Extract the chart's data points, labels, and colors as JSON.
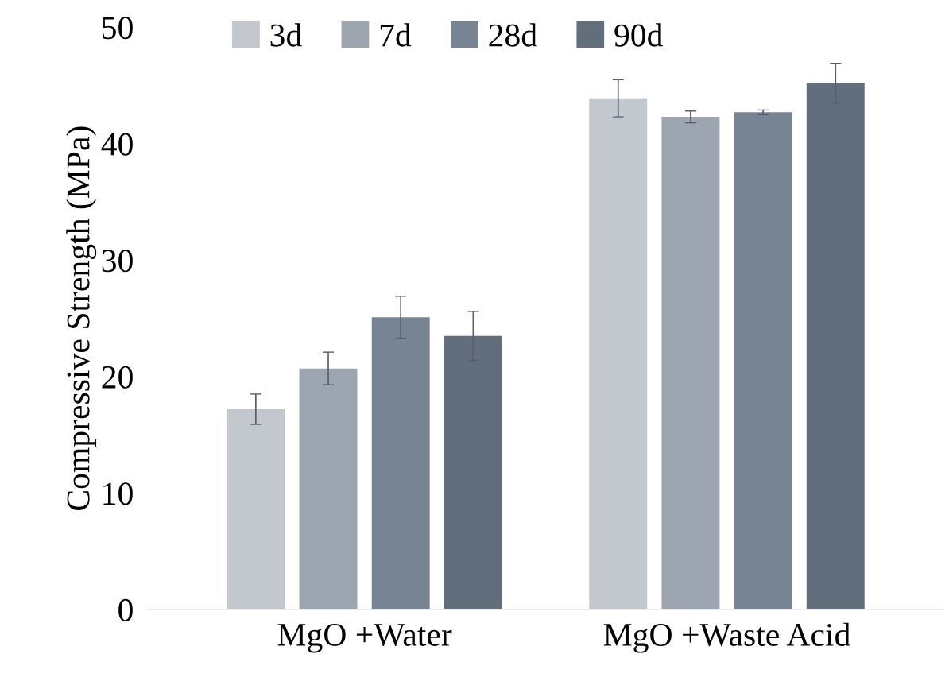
{
  "chart_data": {
    "type": "bar",
    "ylabel": "Compressive Strength (MPa)",
    "categories": [
      "MgO +Water",
      "MgO +Waste Acid"
    ],
    "series": [
      {
        "name": "3d",
        "color": "#c3c8cf",
        "values": [
          17.2,
          43.9
        ],
        "errors": [
          1.3,
          1.6
        ]
      },
      {
        "name": "7d",
        "color": "#9ca5b0",
        "values": [
          20.7,
          42.3
        ],
        "errors": [
          1.4,
          0.5
        ]
      },
      {
        "name": "28d",
        "color": "#778494",
        "values": [
          25.1,
          42.7
        ],
        "errors": [
          1.8,
          0.2
        ]
      },
      {
        "name": "90d",
        "color": "#626e7c",
        "values": [
          23.5,
          45.2
        ],
        "errors": [
          2.1,
          1.7
        ]
      }
    ],
    "ylim": [
      0,
      50
    ],
    "yticks": [
      0,
      10,
      20,
      30,
      40,
      50
    ],
    "grid": false,
    "legend": "top"
  }
}
